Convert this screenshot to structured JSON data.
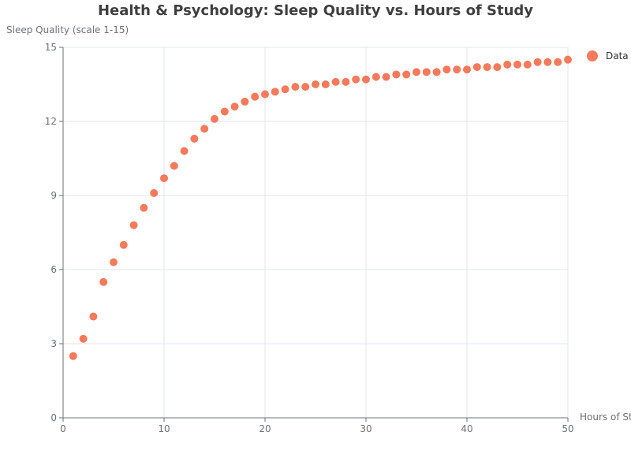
{
  "chart_data": {
    "type": "scatter",
    "title": "Health & Psychology: Sleep Quality vs. Hours of Study",
    "xlabel": "Hours of St",
    "ylabel": "Sleep Quality (scale 1-15)",
    "xlim": [
      0,
      50
    ],
    "ylim": [
      0,
      15
    ],
    "x_ticks": [
      0,
      10,
      20,
      30,
      40,
      50
    ],
    "y_ticks": [
      0,
      3,
      6,
      9,
      12,
      15
    ],
    "grid": true,
    "legend_position": "top-right",
    "series": [
      {
        "name": "Data",
        "color": "#f47a5b",
        "x": [
          1,
          2,
          3,
          4,
          5,
          6,
          7,
          8,
          9,
          10,
          11,
          12,
          13,
          14,
          15,
          16,
          17,
          18,
          19,
          20,
          21,
          22,
          23,
          24,
          25,
          26,
          27,
          28,
          29,
          30,
          31,
          32,
          33,
          34,
          35,
          36,
          37,
          38,
          39,
          40,
          41,
          42,
          43,
          44,
          45,
          46,
          47,
          48,
          49,
          50
        ],
        "y": [
          2.5,
          3.2,
          4.1,
          5.5,
          6.3,
          7.0,
          7.8,
          8.5,
          9.1,
          9.7,
          10.2,
          10.8,
          11.3,
          11.7,
          12.1,
          12.4,
          12.6,
          12.8,
          13.0,
          13.1,
          13.2,
          13.3,
          13.4,
          13.4,
          13.5,
          13.5,
          13.6,
          13.6,
          13.7,
          13.7,
          13.8,
          13.8,
          13.9,
          13.9,
          14.0,
          14.0,
          14.0,
          14.1,
          14.1,
          14.1,
          14.2,
          14.2,
          14.2,
          14.3,
          14.3,
          14.3,
          14.4,
          14.4,
          14.4,
          14.5
        ]
      }
    ]
  }
}
